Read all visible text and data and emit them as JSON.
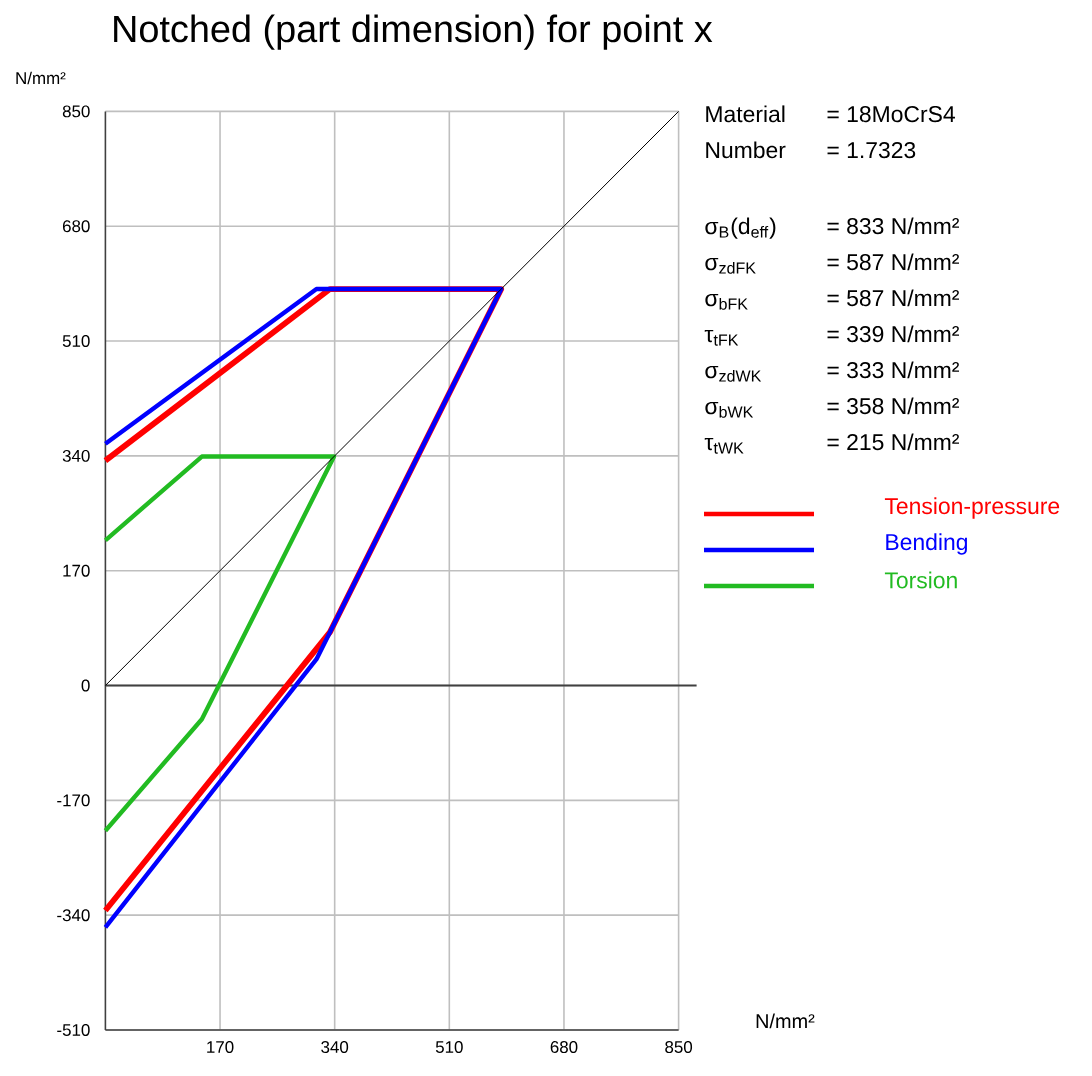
{
  "chart_data": {
    "type": "line",
    "title": "Notched (part dimension) for point x",
    "xlabel": "N/mm²",
    "ylabel": "N/mm²",
    "xlim": [
      0,
      850
    ],
    "ylim": [
      -510,
      850
    ],
    "xticks": [
      170,
      340,
      510,
      680,
      850
    ],
    "yticks": [
      -510,
      -340,
      -170,
      0,
      170,
      340,
      510,
      680,
      850
    ],
    "grid": true,
    "legend": "right",
    "series": [
      {
        "name": "Tension-pressure",
        "color": "#ff0000",
        "x": [
          0,
          333,
          587,
          333,
          0
        ],
        "values": [
          333,
          587,
          587,
          79,
          -333
        ]
      },
      {
        "name": "Bending",
        "color": "#0000ff",
        "x": [
          0,
          313,
          587,
          313,
          0
        ],
        "values": [
          358,
          587,
          587,
          39,
          -358
        ]
      },
      {
        "name": "Torsion",
        "color": "#22bb22",
        "x": [
          0,
          143,
          339,
          143,
          0
        ],
        "values": [
          215,
          339,
          339,
          -50,
          -215
        ]
      },
      {
        "color": "#000000",
        "x": [
          0,
          850
        ],
        "values": [
          0,
          850
        ]
      }
    ],
    "ref_lines": [
      {
        "axis": "y",
        "value": 0,
        "color": "#404040"
      }
    ],
    "annotations": [
      "Material",
      "= 18MoCrS4",
      "Number",
      "= 1.7323",
      "σ$_{B}$(d$_{eff}$)",
      "= 833  N/mm²",
      "σ$_{zdFK}$",
      "= 587  N/mm²",
      "σ$_{bFK}$",
      "= 587  N/mm²",
      "τ$_{tFK}$",
      "= 339  N/mm²",
      "σ$_{zdWK}$",
      "= 333  N/mm²",
      "σ$_{bWK}$",
      "= 358  N/mm²",
      "τ$_{tWK}$",
      "= 215  N/mm²"
    ]
  }
}
